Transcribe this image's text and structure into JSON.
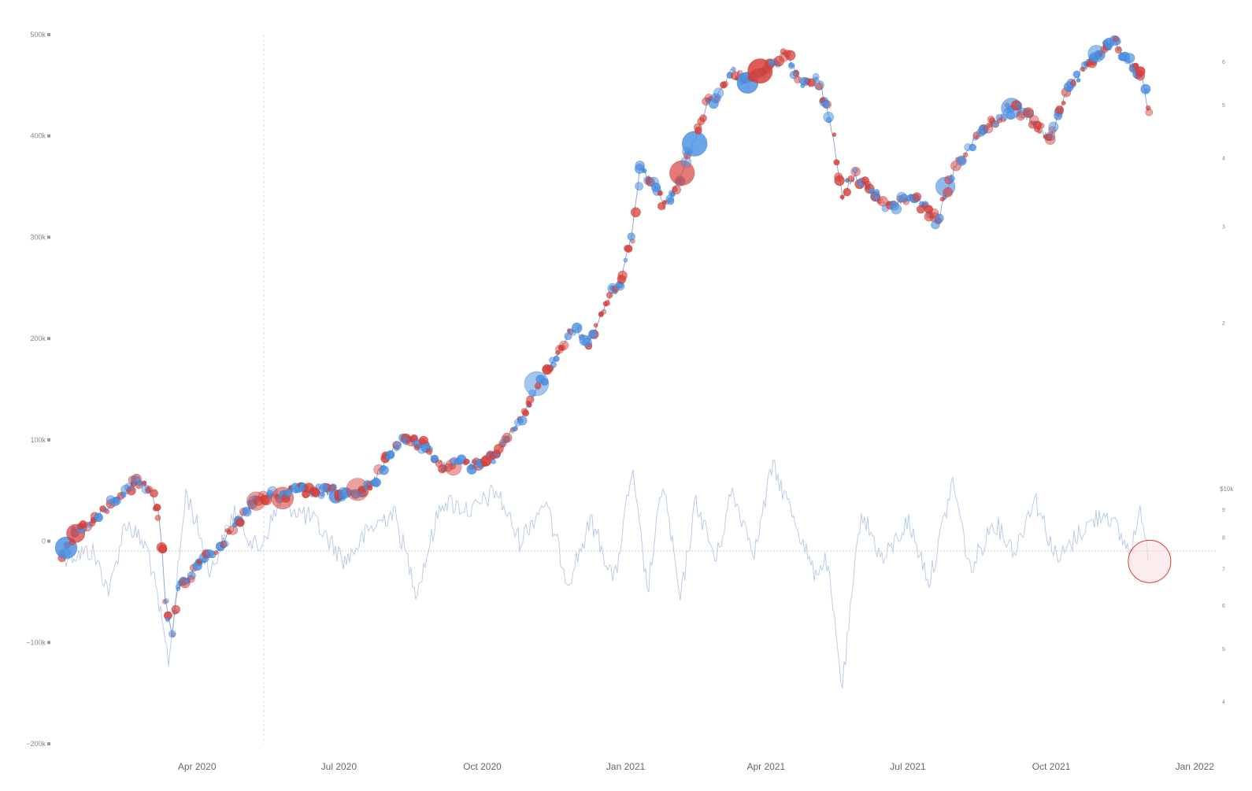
{
  "chart_data": {
    "type": "scatter",
    "x_axis": {
      "tick_labels": [
        "Apr 2020",
        "Jul 2020",
        "Oct 2020",
        "Jan 2021",
        "Apr 2021",
        "Jul 2021",
        "Oct 2021",
        "Jan 2022"
      ],
      "range": [
        "2020-01-01",
        "2022-01-15"
      ]
    },
    "left_axis": {
      "tick_labels": [
        "500k",
        "400k",
        "300k",
        "200k",
        "100k",
        "0",
        "−100k",
        "−200k"
      ],
      "tick_values": [
        500000,
        400000,
        300000,
        200000,
        100000,
        0,
        -100000,
        -200000
      ],
      "range": [
        -200000,
        500000
      ]
    },
    "right_axis_upper": {
      "tick_labels": [
        "6",
        "5",
        "4",
        "3",
        "2"
      ],
      "tick_values": [
        6,
        5,
        4,
        3,
        2
      ],
      "scale": "log"
    },
    "right_axis_lower": {
      "unit_label": "$10k",
      "tick_labels": [
        "9",
        "8",
        "7",
        "6",
        "5",
        "4"
      ],
      "tick_values": [
        9,
        8,
        7,
        6,
        5,
        4
      ],
      "scale": "log"
    },
    "colors": {
      "buy": "#4a90e2",
      "sell": "#d9403a",
      "price_line": "#8fa9cc",
      "flow_line": "#b9cde8",
      "zero_line": "#cccccc",
      "axis_text": "#888888"
    },
    "grid": false,
    "price_path": [
      [
        "2020-01-05",
        -13000
      ],
      [
        "2020-01-12",
        5000
      ],
      [
        "2020-01-25",
        20000
      ],
      [
        "2020-02-08",
        38000
      ],
      [
        "2020-02-22",
        62000
      ],
      [
        "2020-03-02",
        48000
      ],
      [
        "2020-03-08",
        25000
      ],
      [
        "2020-03-12",
        -65000
      ],
      [
        "2020-03-16",
        -90000
      ],
      [
        "2020-03-20",
        -45000
      ],
      [
        "2020-03-26",
        -35000
      ],
      [
        "2020-04-02",
        -25000
      ],
      [
        "2020-04-08",
        -18000
      ],
      [
        "2020-04-16",
        -5000
      ],
      [
        "2020-04-25",
        15000
      ],
      [
        "2020-05-05",
        35000
      ],
      [
        "2020-05-15",
        45000
      ],
      [
        "2020-05-25",
        45000
      ],
      [
        "2020-06-05",
        52000
      ],
      [
        "2020-06-20",
        50000
      ],
      [
        "2020-07-05",
        46000
      ],
      [
        "2020-07-18",
        48000
      ],
      [
        "2020-07-28",
        70000
      ],
      [
        "2020-08-05",
        95000
      ],
      [
        "2020-08-15",
        98000
      ],
      [
        "2020-08-25",
        95000
      ],
      [
        "2020-09-05",
        75000
      ],
      [
        "2020-09-15",
        78000
      ],
      [
        "2020-09-28",
        77000
      ],
      [
        "2020-10-12",
        88000
      ],
      [
        "2020-10-25",
        120000
      ],
      [
        "2020-11-05",
        150000
      ],
      [
        "2020-11-18",
        185000
      ],
      [
        "2020-11-28",
        210000
      ],
      [
        "2020-12-08",
        195000
      ],
      [
        "2020-12-18",
        230000
      ],
      [
        "2020-12-28",
        255000
      ],
      [
        "2021-01-05",
        300000
      ],
      [
        "2021-01-10",
        370000
      ],
      [
        "2021-01-18",
        355000
      ],
      [
        "2021-01-26",
        330000
      ],
      [
        "2021-02-05",
        360000
      ],
      [
        "2021-02-15",
        400000
      ],
      [
        "2021-02-22",
        430000
      ],
      [
        "2021-03-01",
        440000
      ],
      [
        "2021-03-10",
        465000
      ],
      [
        "2021-03-20",
        455000
      ],
      [
        "2021-04-01",
        465000
      ],
      [
        "2021-04-14",
        480000
      ],
      [
        "2021-04-25",
        450000
      ],
      [
        "2021-05-05",
        455000
      ],
      [
        "2021-05-12",
        415000
      ],
      [
        "2021-05-20",
        340000
      ],
      [
        "2021-05-28",
        360000
      ],
      [
        "2021-06-08",
        345000
      ],
      [
        "2021-06-20",
        330000
      ],
      [
        "2021-07-01",
        340000
      ],
      [
        "2021-07-12",
        330000
      ],
      [
        "2021-07-20",
        315000
      ],
      [
        "2021-07-30",
        365000
      ],
      [
        "2021-08-15",
        400000
      ],
      [
        "2021-08-30",
        420000
      ],
      [
        "2021-09-07",
        430000
      ],
      [
        "2021-09-20",
        415000
      ],
      [
        "2021-09-30",
        395000
      ],
      [
        "2021-10-10",
        440000
      ],
      [
        "2021-10-20",
        465000
      ],
      [
        "2021-11-01",
        480000
      ],
      [
        "2021-11-10",
        495000
      ],
      [
        "2021-11-20",
        470000
      ],
      [
        "2021-11-28",
        460000
      ],
      [
        "2021-12-03",
        420000
      ]
    ],
    "flow_path": [
      [
        "2020-01-05",
        -15000
      ],
      [
        "2020-01-25",
        -10000
      ],
      [
        "2020-02-05",
        -50000
      ],
      [
        "2020-02-15",
        20000
      ],
      [
        "2020-03-01",
        -10000
      ],
      [
        "2020-03-14",
        -120000
      ],
      [
        "2020-03-25",
        50000
      ],
      [
        "2020-04-10",
        -30000
      ],
      [
        "2020-04-25",
        30000
      ],
      [
        "2020-05-10",
        -10000
      ],
      [
        "2020-05-25",
        40000
      ],
      [
        "2020-06-15",
        20000
      ],
      [
        "2020-07-05",
        -20000
      ],
      [
        "2020-07-20",
        10000
      ],
      [
        "2020-08-05",
        30000
      ],
      [
        "2020-08-20",
        -50000
      ],
      [
        "2020-09-05",
        40000
      ],
      [
        "2020-09-25",
        30000
      ],
      [
        "2020-10-10",
        50000
      ],
      [
        "2020-10-25",
        0
      ],
      [
        "2020-11-10",
        40000
      ],
      [
        "2020-11-25",
        -40000
      ],
      [
        "2020-12-10",
        20000
      ],
      [
        "2020-12-25",
        -40000
      ],
      [
        "2021-01-05",
        70000
      ],
      [
        "2021-01-15",
        -50000
      ],
      [
        "2021-01-25",
        60000
      ],
      [
        "2021-02-05",
        -60000
      ],
      [
        "2021-02-15",
        40000
      ],
      [
        "2021-02-28",
        -20000
      ],
      [
        "2021-03-10",
        50000
      ],
      [
        "2021-03-25",
        -10000
      ],
      [
        "2021-04-05",
        75000
      ],
      [
        "2021-04-20",
        20000
      ],
      [
        "2021-05-01",
        -30000
      ],
      [
        "2021-05-10",
        -20000
      ],
      [
        "2021-05-20",
        -145000
      ],
      [
        "2021-06-01",
        30000
      ],
      [
        "2021-06-15",
        -20000
      ],
      [
        "2021-07-01",
        20000
      ],
      [
        "2021-07-15",
        -40000
      ],
      [
        "2021-07-30",
        60000
      ],
      [
        "2021-08-10",
        -30000
      ],
      [
        "2021-08-25",
        20000
      ],
      [
        "2021-09-08",
        -10000
      ],
      [
        "2021-09-20",
        45000
      ],
      [
        "2021-10-05",
        -20000
      ],
      [
        "2021-10-20",
        10000
      ],
      [
        "2021-11-05",
        30000
      ],
      [
        "2021-11-20",
        -10000
      ],
      [
        "2021-11-28",
        30000
      ],
      [
        "2021-12-03",
        -20000
      ]
    ],
    "highlight": {
      "x": "2021-12-03",
      "y": -20000
    }
  }
}
